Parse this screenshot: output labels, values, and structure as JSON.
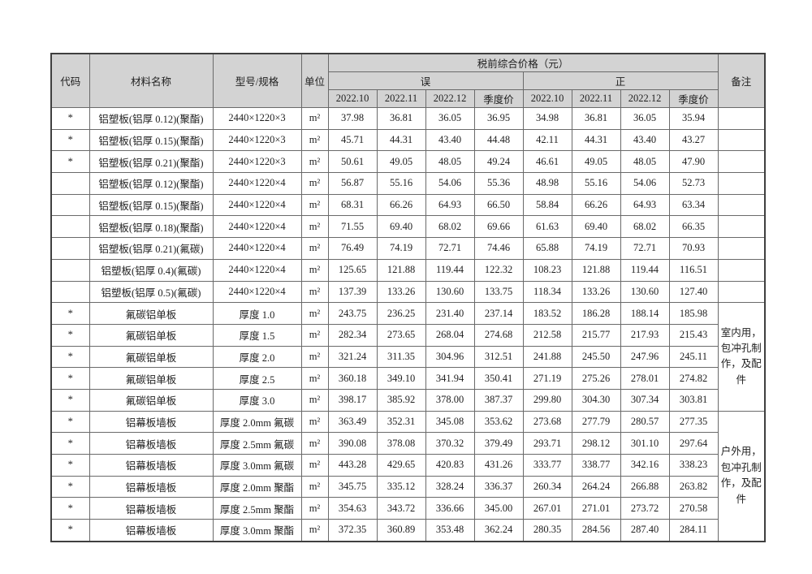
{
  "colors": {
    "header_bg": "#d3d3d3",
    "accent_red": "#d93232",
    "grid_line": "#6a6a6a",
    "text": "#1f1f1f"
  },
  "table": {
    "headers": {
      "code": "代码",
      "material": "材料名称",
      "spec": "型号/规格",
      "unit": "单位",
      "price_group": "税前综合价格（元）",
      "wrong": "误",
      "correct": "正",
      "months": [
        "2022.10",
        "2022.11",
        "2022.12",
        "季度价"
      ],
      "remark": "备注"
    },
    "remark_empty_rows": 9,
    "remarks": [
      {
        "row": 9,
        "span": 5,
        "text": "室内用，包冲孔制作，及配件"
      },
      {
        "row": 14,
        "span": 6,
        "text": "户外用，包冲孔制作，及配件"
      }
    ],
    "rows": [
      {
        "code": "*",
        "material": "铝塑板(铝厚 0.12)(聚酯)",
        "spec": "2440×1220×3",
        "unit": "m²",
        "wrong": [
          "37.98",
          "36.81",
          "36.05",
          "36.95"
        ],
        "correct": [
          "34.98",
          "36.81",
          "36.05",
          "35.94"
        ],
        "red": [
          1,
          0,
          0,
          1
        ]
      },
      {
        "code": "*",
        "material": "铝塑板(铝厚 0.15)(聚酯)",
        "spec": "2440×1220×3",
        "unit": "m²",
        "wrong": [
          "45.71",
          "44.31",
          "43.40",
          "44.48"
        ],
        "correct": [
          "42.11",
          "44.31",
          "43.40",
          "43.27"
        ],
        "red": [
          1,
          0,
          0,
          1
        ]
      },
      {
        "code": "*",
        "material": "铝塑板(铝厚 0.21)(聚酯)",
        "spec": "2440×1220×3",
        "unit": "m²",
        "wrong": [
          "50.61",
          "49.05",
          "48.05",
          "49.24"
        ],
        "correct": [
          "46.61",
          "49.05",
          "48.05",
          "47.90"
        ],
        "red": [
          1,
          0,
          0,
          1
        ]
      },
      {
        "code": "",
        "material": "铝塑板(铝厚 0.12)(聚酯)",
        "spec": "2440×1220×4",
        "unit": "m²",
        "wrong": [
          "56.87",
          "55.16",
          "54.06",
          "55.36"
        ],
        "correct": [
          "48.98",
          "55.16",
          "54.06",
          "52.73"
        ],
        "red": [
          1,
          0,
          0,
          1
        ]
      },
      {
        "code": "",
        "material": "铝塑板(铝厚 0.15)(聚酯)",
        "spec": "2440×1220×4",
        "unit": "m²",
        "wrong": [
          "68.31",
          "66.26",
          "64.93",
          "66.50"
        ],
        "correct": [
          "58.84",
          "66.26",
          "64.93",
          "63.34"
        ],
        "red": [
          1,
          0,
          0,
          1
        ]
      },
      {
        "code": "",
        "material": "铝塑板(铝厚 0.18)(聚酯)",
        "spec": "2440×1220×4",
        "unit": "m²",
        "wrong": [
          "71.55",
          "69.40",
          "68.02",
          "69.66"
        ],
        "correct": [
          "61.63",
          "69.40",
          "68.02",
          "66.35"
        ],
        "red": [
          1,
          0,
          0,
          1
        ]
      },
      {
        "code": "",
        "material": "铝塑板(铝厚 0.21)(氟碳)",
        "spec": "2440×1220×4",
        "unit": "m²",
        "wrong": [
          "76.49",
          "74.19",
          "72.71",
          "74.46"
        ],
        "correct": [
          "65.88",
          "74.19",
          "72.71",
          "70.93"
        ],
        "red": [
          1,
          0,
          0,
          1
        ]
      },
      {
        "code": "",
        "material": "铝塑板(铝厚 0.4)(氟碳)",
        "spec": "2440×1220×4",
        "unit": "m²",
        "wrong": [
          "125.65",
          "121.88",
          "119.44",
          "122.32"
        ],
        "correct": [
          "108.23",
          "121.88",
          "119.44",
          "116.51"
        ],
        "red": [
          1,
          0,
          0,
          1
        ]
      },
      {
        "code": "",
        "material": "铝塑板(铝厚 0.5)(氟碳)",
        "spec": "2440×1220×4",
        "unit": "m²",
        "wrong": [
          "137.39",
          "133.26",
          "130.60",
          "133.75"
        ],
        "correct": [
          "118.34",
          "133.26",
          "130.60",
          "127.40"
        ],
        "red": [
          1,
          0,
          0,
          1
        ]
      },
      {
        "code": "*",
        "material": "氟碳铝单板",
        "spec": "厚度 1.0",
        "unit": "m²",
        "wrong": [
          "243.75",
          "236.25",
          "231.40",
          "237.14"
        ],
        "correct": [
          "183.52",
          "186.28",
          "188.14",
          "185.98"
        ],
        "red": [
          1,
          1,
          1,
          1
        ]
      },
      {
        "code": "*",
        "material": "氟碳铝单板",
        "spec": "厚度 1.5",
        "unit": "m²",
        "wrong": [
          "282.34",
          "273.65",
          "268.04",
          "274.68"
        ],
        "correct": [
          "212.58",
          "215.77",
          "217.93",
          "215.43"
        ],
        "red": [
          1,
          1,
          1,
          1
        ]
      },
      {
        "code": "*",
        "material": "氟碳铝单板",
        "spec": "厚度 2.0",
        "unit": "m²",
        "wrong": [
          "321.24",
          "311.35",
          "304.96",
          "312.51"
        ],
        "correct": [
          "241.88",
          "245.50",
          "247.96",
          "245.11"
        ],
        "red": [
          1,
          1,
          1,
          1
        ]
      },
      {
        "code": "*",
        "material": "氟碳铝单板",
        "spec": "厚度 2.5",
        "unit": "m²",
        "wrong": [
          "360.18",
          "349.10",
          "341.94",
          "350.41"
        ],
        "correct": [
          "271.19",
          "275.26",
          "278.01",
          "274.82"
        ],
        "red": [
          1,
          1,
          1,
          1
        ]
      },
      {
        "code": "*",
        "material": "氟碳铝单板",
        "spec": "厚度 3.0",
        "unit": "m²",
        "wrong": [
          "398.17",
          "385.92",
          "378.00",
          "387.37"
        ],
        "correct": [
          "299.80",
          "304.30",
          "307.34",
          "303.81"
        ],
        "red": [
          1,
          1,
          1,
          1
        ]
      },
      {
        "code": "*",
        "material": "铝幕板墙板",
        "spec": "厚度 2.0mm 氟碳",
        "unit": "m²",
        "wrong": [
          "363.49",
          "352.31",
          "345.08",
          "353.62"
        ],
        "correct": [
          "273.68",
          "277.79",
          "280.57",
          "277.35"
        ],
        "red": [
          1,
          1,
          1,
          1
        ]
      },
      {
        "code": "*",
        "material": "铝幕板墙板",
        "spec": "厚度 2.5mm 氟碳",
        "unit": "m²",
        "wrong": [
          "390.08",
          "378.08",
          "370.32",
          "379.49"
        ],
        "correct": [
          "293.71",
          "298.12",
          "301.10",
          "297.64"
        ],
        "red": [
          1,
          1,
          1,
          1
        ]
      },
      {
        "code": "*",
        "material": "铝幕板墙板",
        "spec": "厚度 3.0mm 氟碳",
        "unit": "m²",
        "wrong": [
          "443.28",
          "429.65",
          "420.83",
          "431.26"
        ],
        "correct": [
          "333.77",
          "338.77",
          "342.16",
          "338.23"
        ],
        "red": [
          1,
          1,
          1,
          1
        ]
      },
      {
        "code": "*",
        "material": "铝幕板墙板",
        "spec": "厚度 2.0mm 聚酯",
        "unit": "m²",
        "wrong": [
          "345.75",
          "335.12",
          "328.24",
          "336.37"
        ],
        "correct": [
          "260.34",
          "264.24",
          "266.88",
          "263.82"
        ],
        "red": [
          1,
          1,
          1,
          1
        ]
      },
      {
        "code": "*",
        "material": "铝幕板墙板",
        "spec": "厚度 2.5mm 聚酯",
        "unit": "m²",
        "wrong": [
          "354.63",
          "343.72",
          "336.66",
          "345.00"
        ],
        "correct": [
          "267.01",
          "271.01",
          "273.72",
          "270.58"
        ],
        "red": [
          1,
          1,
          1,
          1
        ]
      },
      {
        "code": "*",
        "material": "铝幕板墙板",
        "spec": "厚度 3.0mm 聚酯",
        "unit": "m²",
        "wrong": [
          "372.35",
          "360.89",
          "353.48",
          "362.24"
        ],
        "correct": [
          "280.35",
          "284.56",
          "287.40",
          "284.11"
        ],
        "red": [
          1,
          1,
          1,
          1
        ]
      }
    ]
  }
}
